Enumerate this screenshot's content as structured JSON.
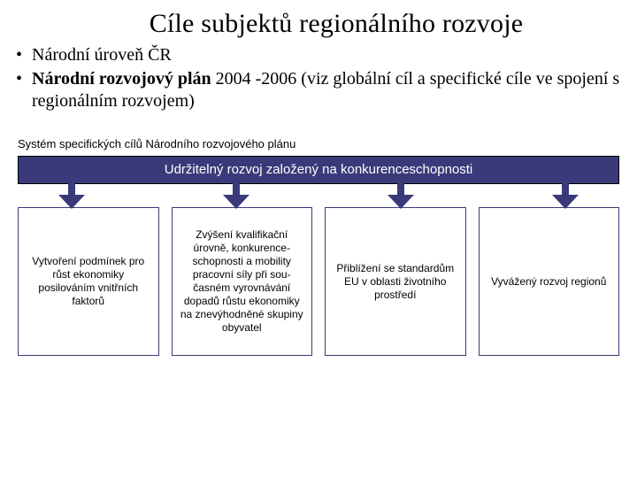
{
  "title": "Cíle subjektů regionálního rozvoje",
  "bullets": {
    "b1": "Národní úroveň ČR",
    "b2_bold": "Národní rozvojový plán",
    "b2_rest": " 2004 -2006 (viz globální cíl a specifické cíle ve spojení s regionálním rozvojem)"
  },
  "diagram": {
    "caption": "Systém specifických cílů Národního rozvojového plánu",
    "header": "Udržitelný rozvoj založený na konkurenceschopnosti",
    "header_bg": "#3a3a7a",
    "header_fg": "#ffffff",
    "arrow_color": "#3a3a7a",
    "box_border": "#3a3a7a",
    "boxes": [
      "Vytvoření podmínek pro růst ekonomiky posilováním vnitřních faktorů",
      "Zvýšení kvalifikační úrovně, konkurence-schopnosti a mobility pracovní síly při sou-časném vyrovnávání dopadů růstu ekonomiky na znevýhodněné skupiny obyvatel",
      "Přiblížení se standardům EU v oblasti životního prostředí",
      "Vyvážený rozvoj regionů"
    ]
  },
  "typography": {
    "title_fontsize": 30,
    "bullet_fontsize": 20,
    "caption_fontsize": 13,
    "header_fontsize": 15,
    "box_fontsize": 12
  },
  "colors": {
    "page_bg": "#ffffff",
    "text": "#000000"
  }
}
